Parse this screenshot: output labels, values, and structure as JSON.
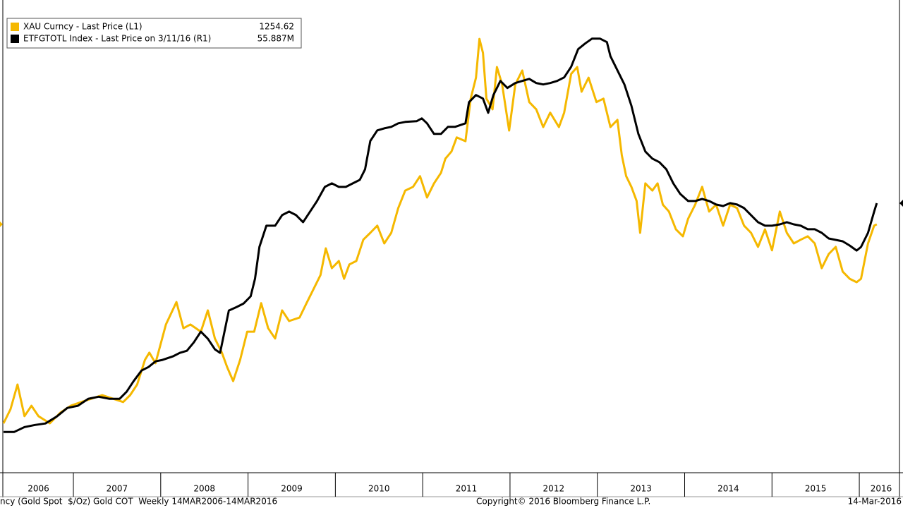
{
  "chart_data": {
    "type": "line",
    "legend": "upper left",
    "xlim": [
      2006.2,
      2016.46
    ],
    "ylim": [
      390,
      2023
    ],
    "y2lim": [
      7.8,
      91.5
    ],
    "xticks": [
      {
        "value": 2006.6,
        "label": "2006"
      },
      {
        "value": 2007.5,
        "label": "2007"
      },
      {
        "value": 2008.5,
        "label": "2008"
      },
      {
        "value": 2009.5,
        "label": "2009"
      },
      {
        "value": 2010.5,
        "label": "2010"
      },
      {
        "value": 2011.5,
        "label": "2011"
      },
      {
        "value": 2012.5,
        "label": "2012"
      },
      {
        "value": 2013.5,
        "label": "2013"
      },
      {
        "value": 2014.5,
        "label": "2014"
      },
      {
        "value": 2015.5,
        "label": "2015"
      },
      {
        "value": 2016.25,
        "label": "2016"
      }
    ],
    "footnote": "ncy (Gold Spot  $/Oz) Gold COT  Weekly 14MAR2006-14MAR2016",
    "copyright": "Copyright© 2016 Bloomberg Finance L.P.",
    "date": "14-Mar-2016",
    "series": [
      {
        "name": "XAU Curncy - Last Price (L1)",
        "color": "#f5b800",
        "axis": "y",
        "last_value": 1254.62,
        "x": [
          2006.2,
          2006.28,
          2006.36,
          2006.44,
          2006.52,
          2006.6,
          2006.73,
          2006.85,
          2006.97,
          2007.09,
          2007.21,
          2007.33,
          2007.45,
          2007.57,
          2007.65,
          2007.73,
          2007.82,
          2007.87,
          2007.94,
          2008.06,
          2008.18,
          2008.26,
          2008.34,
          2008.46,
          2008.54,
          2008.62,
          2008.7,
          2008.76,
          2008.83,
          2008.91,
          2008.99,
          2009.07,
          2009.15,
          2009.23,
          2009.31,
          2009.39,
          2009.47,
          2009.59,
          2009.67,
          2009.75,
          2009.83,
          2009.89,
          2009.96,
          2010.04,
          2010.1,
          2010.16,
          2010.24,
          2010.32,
          2010.4,
          2010.48,
          2010.56,
          2010.64,
          2010.72,
          2010.8,
          2010.89,
          2010.97,
          2011.05,
          2011.13,
          2011.21,
          2011.26,
          2011.33,
          2011.39,
          2011.49,
          2011.55,
          2011.61,
          2011.65,
          2011.69,
          2011.73,
          2011.8,
          2011.85,
          2011.91,
          2011.99,
          2012.06,
          2012.14,
          2012.22,
          2012.3,
          2012.38,
          2012.46,
          2012.56,
          2012.62,
          2012.7,
          2012.77,
          2012.82,
          2012.9,
          2012.99,
          2013.07,
          2013.15,
          2013.23,
          2013.28,
          2013.33,
          2013.39,
          2013.45,
          2013.49,
          2013.55,
          2013.63,
          2013.69,
          2013.75,
          2013.82,
          2013.9,
          2013.98,
          2014.04,
          2014.12,
          2014.2,
          2014.28,
          2014.36,
          2014.44,
          2014.52,
          2014.6,
          2014.68,
          2014.76,
          2014.84,
          2014.92,
          2015.0,
          2015.09,
          2015.17,
          2015.25,
          2015.33,
          2015.41,
          2015.49,
          2015.57,
          2015.65,
          2015.73,
          2015.81,
          2015.89,
          2015.97,
          2016.02,
          2016.1,
          2016.17,
          2016.2
        ],
        "values": [
          562,
          611,
          697,
          587,
          623,
          587,
          562,
          599,
          623,
          636,
          648,
          660,
          648,
          636,
          660,
          697,
          783,
          808,
          771,
          906,
          984,
          893,
          906,
          881,
          955,
          857,
          808,
          758,
          709,
          783,
          881,
          881,
          980,
          893,
          857,
          955,
          918,
          930,
          980,
          1029,
          1078,
          1171,
          1102,
          1127,
          1065,
          1115,
          1127,
          1201,
          1225,
          1250,
          1188,
          1225,
          1311,
          1372,
          1385,
          1422,
          1348,
          1397,
          1434,
          1483,
          1508,
          1557,
          1544,
          1692,
          1765,
          1900,
          1851,
          1692,
          1655,
          1802,
          1741,
          1581,
          1741,
          1790,
          1680,
          1655,
          1593,
          1643,
          1593,
          1643,
          1778,
          1802,
          1716,
          1765,
          1680,
          1692,
          1593,
          1618,
          1495,
          1422,
          1385,
          1336,
          1225,
          1397,
          1372,
          1397,
          1323,
          1299,
          1237,
          1213,
          1274,
          1323,
          1385,
          1299,
          1323,
          1250,
          1323,
          1311,
          1250,
          1225,
          1176,
          1237,
          1164,
          1299,
          1225,
          1188,
          1201,
          1213,
          1188,
          1102,
          1151,
          1176,
          1090,
          1065,
          1053,
          1065,
          1188,
          1250,
          1254.62
        ]
      },
      {
        "name": "ETFGTOTL Index - Last Price on 3/11/16 (R1)",
        "color": "#000000",
        "axis": "y2",
        "last_value": 55.887,
        "last_value_label": "55.887M",
        "x": [
          2006.2,
          2006.32,
          2006.44,
          2006.56,
          2006.68,
          2006.81,
          2006.93,
          2007.05,
          2007.17,
          2007.29,
          2007.41,
          2007.53,
          2007.61,
          2007.69,
          2007.78,
          2007.86,
          2007.94,
          2008.02,
          2008.14,
          2008.22,
          2008.3,
          2008.38,
          2008.46,
          2008.54,
          2008.62,
          2008.68,
          2008.73,
          2008.78,
          2008.87,
          2008.95,
          2009.03,
          2009.08,
          2009.13,
          2009.21,
          2009.31,
          2009.39,
          2009.47,
          2009.55,
          2009.63,
          2009.71,
          2009.79,
          2009.88,
          2009.96,
          2010.04,
          2010.12,
          2010.2,
          2010.28,
          2010.34,
          2010.4,
          2010.48,
          2010.56,
          2010.64,
          2010.72,
          2010.8,
          2010.93,
          2010.99,
          2011.05,
          2011.13,
          2011.21,
          2011.29,
          2011.37,
          2011.49,
          2011.53,
          2011.61,
          2011.69,
          2011.75,
          2011.81,
          2011.89,
          2011.97,
          2012.06,
          2012.14,
          2012.22,
          2012.3,
          2012.38,
          2012.46,
          2012.54,
          2012.62,
          2012.7,
          2012.78,
          2012.86,
          2012.94,
          2013.03,
          2013.11,
          2013.15,
          2013.23,
          2013.31,
          2013.39,
          2013.47,
          2013.55,
          2013.63,
          2013.71,
          2013.79,
          2013.87,
          2013.95,
          2014.04,
          2014.12,
          2014.2,
          2014.28,
          2014.36,
          2014.44,
          2014.52,
          2014.6,
          2014.68,
          2014.76,
          2014.84,
          2014.92,
          2015.0,
          2015.09,
          2015.17,
          2015.25,
          2015.33,
          2015.41,
          2015.49,
          2015.57,
          2015.65,
          2015.73,
          2015.81,
          2015.89,
          2015.97,
          2016.02,
          2016.1,
          2016.17,
          2016.2
        ],
        "values": [
          15.06,
          15.06,
          15.94,
          16.32,
          16.58,
          17.83,
          19.35,
          19.73,
          20.99,
          21.36,
          20.99,
          20.99,
          22.25,
          24.14,
          26.03,
          26.66,
          27.66,
          27.92,
          28.55,
          29.18,
          29.55,
          31.06,
          32.96,
          31.7,
          29.81,
          29.18,
          32.96,
          36.74,
          37.37,
          38.0,
          39.26,
          42.41,
          48.08,
          51.86,
          51.86,
          53.75,
          54.38,
          53.75,
          52.49,
          54.38,
          56.27,
          58.79,
          59.42,
          58.79,
          58.79,
          59.42,
          60.05,
          61.94,
          66.98,
          68.87,
          69.24,
          69.5,
          70.13,
          70.38,
          70.5,
          71.01,
          70.13,
          68.24,
          68.24,
          69.5,
          69.5,
          70.13,
          73.91,
          75.17,
          74.54,
          72.02,
          75.17,
          77.69,
          76.43,
          77.31,
          77.69,
          78.06,
          77.31,
          77.06,
          77.31,
          77.69,
          78.32,
          80.21,
          83.36,
          84.36,
          85.25,
          85.25,
          84.62,
          82.1,
          79.58,
          77.06,
          73.28,
          68.24,
          65.09,
          63.83,
          63.2,
          61.94,
          59.42,
          57.53,
          56.27,
          56.27,
          56.63,
          56.27,
          55.64,
          55.38,
          55.89,
          55.64,
          55.01,
          53.75,
          52.49,
          51.86,
          51.86,
          52.11,
          52.49,
          52.11,
          51.86,
          51.23,
          51.23,
          50.6,
          49.59,
          49.34,
          49.08,
          48.33,
          47.44,
          48.08,
          50.6,
          54.38,
          55.887
        ]
      }
    ]
  }
}
